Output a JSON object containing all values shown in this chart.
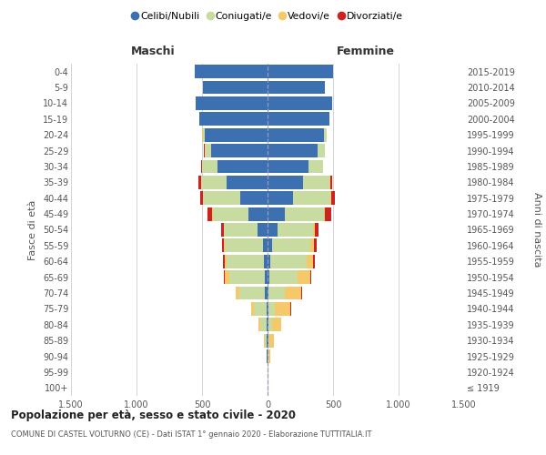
{
  "age_groups": [
    "100+",
    "95-99",
    "90-94",
    "85-89",
    "80-84",
    "75-79",
    "70-74",
    "65-69",
    "60-64",
    "55-59",
    "50-54",
    "45-49",
    "40-44",
    "35-39",
    "30-34",
    "25-29",
    "20-24",
    "15-19",
    "10-14",
    "5-9",
    "0-4"
  ],
  "birth_years": [
    "≤ 1919",
    "1920-1924",
    "1925-1929",
    "1930-1934",
    "1935-1939",
    "1940-1944",
    "1945-1949",
    "1950-1954",
    "1955-1959",
    "1960-1964",
    "1965-1969",
    "1970-1974",
    "1975-1979",
    "1980-1984",
    "1985-1989",
    "1990-1994",
    "1995-1999",
    "2000-2004",
    "2005-2009",
    "2010-2014",
    "2015-2019"
  ],
  "male": {
    "celibi": [
      2,
      2,
      4,
      5,
      8,
      10,
      18,
      20,
      28,
      38,
      75,
      145,
      205,
      310,
      385,
      430,
      480,
      520,
      550,
      490,
      555
    ],
    "coniugati": [
      0,
      1,
      4,
      18,
      48,
      95,
      195,
      275,
      285,
      285,
      255,
      275,
      285,
      195,
      115,
      48,
      13,
      4,
      1,
      0,
      0
    ],
    "vedovi": [
      0,
      0,
      1,
      4,
      13,
      22,
      28,
      28,
      13,
      8,
      4,
      4,
      4,
      4,
      0,
      4,
      4,
      0,
      0,
      0,
      0
    ],
    "divorziati": [
      0,
      0,
      0,
      0,
      0,
      0,
      4,
      8,
      13,
      18,
      22,
      32,
      22,
      18,
      8,
      4,
      0,
      0,
      0,
      0,
      0
    ]
  },
  "female": {
    "nubili": [
      1,
      1,
      2,
      4,
      4,
      4,
      8,
      13,
      22,
      38,
      75,
      135,
      195,
      270,
      315,
      380,
      430,
      470,
      490,
      440,
      500
    ],
    "coniugate": [
      0,
      1,
      4,
      8,
      28,
      55,
      125,
      215,
      275,
      285,
      275,
      295,
      285,
      205,
      108,
      55,
      18,
      4,
      1,
      0,
      0
    ],
    "vedove": [
      1,
      4,
      13,
      38,
      75,
      115,
      125,
      95,
      48,
      28,
      13,
      8,
      4,
      4,
      0,
      0,
      4,
      0,
      0,
      0,
      0
    ],
    "divorziate": [
      0,
      0,
      0,
      0,
      0,
      4,
      4,
      8,
      18,
      22,
      28,
      48,
      28,
      13,
      4,
      0,
      0,
      0,
      0,
      0,
      0
    ]
  },
  "colors": {
    "celibi": "#3d70b0",
    "coniugati": "#c8dba0",
    "vedovi": "#f5c96a",
    "divorziati": "#cc2222"
  },
  "xlim": 1500,
  "xticks": [
    -1500,
    -1000,
    -500,
    0,
    500,
    1000,
    1500
  ],
  "xtick_labels": [
    "1.500",
    "1.000",
    "500",
    "0",
    "500",
    "1.000",
    "1.500"
  ],
  "title": "Popolazione per età, sesso e stato civile - 2020",
  "subtitle": "COMUNE DI CASTEL VOLTURNO (CE) - Dati ISTAT 1° gennaio 2020 - Elaborazione TUTTITALIA.IT",
  "ylabel_left": "Fasce di età",
  "ylabel_right": "Anni di nascita",
  "header_left": "Maschi",
  "header_right": "Femmine",
  "legend_labels": [
    "Celibi/Nubili",
    "Coniugati/e",
    "Vedovi/e",
    "Divorziati/e"
  ],
  "background_color": "#ffffff",
  "grid_color": "#cccccc"
}
